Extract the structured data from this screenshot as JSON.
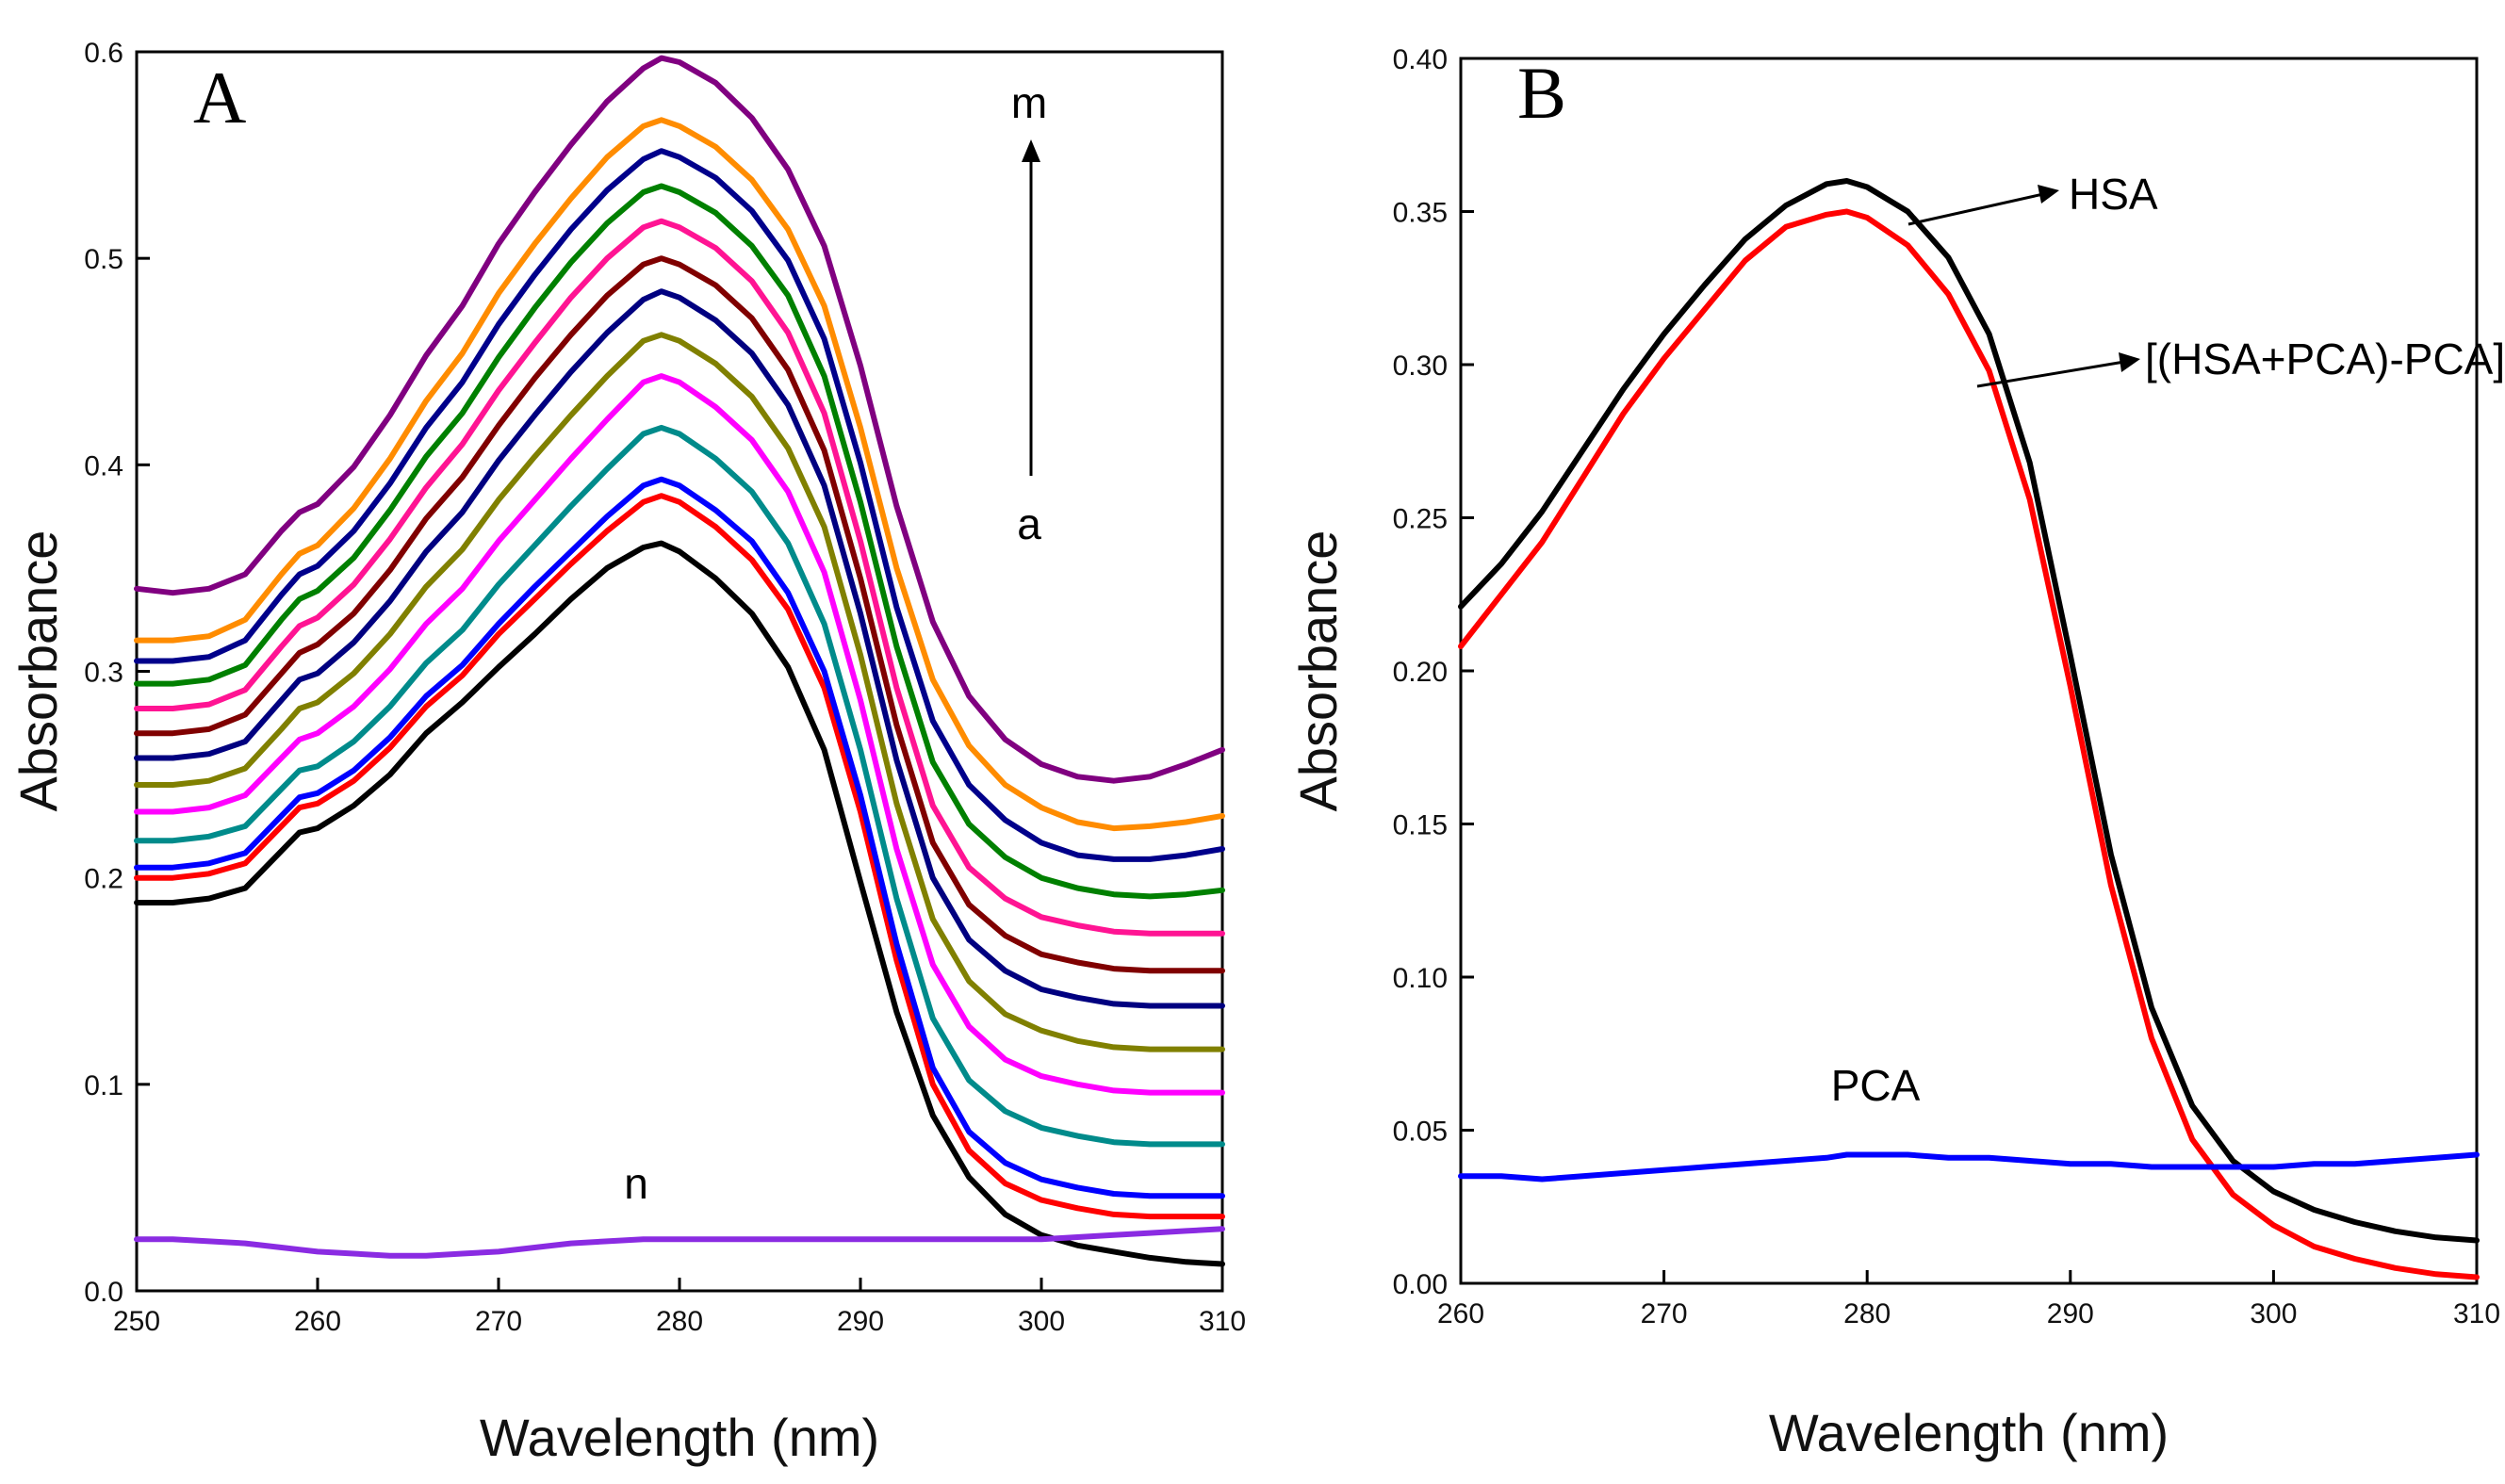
{
  "chart_data": [
    {
      "panel_label": "A",
      "type": "line",
      "xlabel": "Wavelength (nm)",
      "ylabel": "Absorbance",
      "xlim": [
        250,
        310
      ],
      "ylim": [
        0.0,
        0.6
      ],
      "xticks": [
        "250",
        "260",
        "270",
        "280",
        "290",
        "300",
        "310"
      ],
      "yticks": [
        "0.0",
        "0.1",
        "0.2",
        "0.3",
        "0.4",
        "0.5",
        "0.6"
      ],
      "grid": false,
      "legend": "none",
      "annotations": [
        {
          "text": "m"
        },
        {
          "text": "a"
        },
        {
          "text": "n"
        }
      ],
      "x": [
        250,
        252,
        254,
        256,
        258,
        259,
        260,
        262,
        264,
        266,
        268,
        270,
        272,
        274,
        276,
        278,
        279,
        280,
        282,
        284,
        286,
        288,
        290,
        292,
        294,
        296,
        298,
        300,
        302,
        304,
        306,
        308,
        310
      ],
      "series": [
        {
          "color": "#000000",
          "values": [
            0.188,
            0.188,
            0.19,
            0.195,
            0.213,
            0.222,
            0.224,
            0.235,
            0.25,
            0.27,
            0.285,
            0.302,
            0.318,
            0.335,
            0.35,
            0.36,
            0.362,
            0.358,
            0.345,
            0.328,
            0.302,
            0.262,
            0.198,
            0.135,
            0.085,
            0.055,
            0.037,
            0.027,
            0.022,
            0.019,
            0.016,
            0.014,
            0.013
          ]
        },
        {
          "color": "#ff0000",
          "values": [
            0.2,
            0.2,
            0.202,
            0.207,
            0.225,
            0.234,
            0.236,
            0.247,
            0.263,
            0.283,
            0.298,
            0.318,
            0.335,
            0.352,
            0.368,
            0.382,
            0.385,
            0.382,
            0.37,
            0.354,
            0.33,
            0.292,
            0.232,
            0.16,
            0.1,
            0.068,
            0.052,
            0.044,
            0.04,
            0.037,
            0.036,
            0.036,
            0.036
          ]
        },
        {
          "color": "#0000ff",
          "values": [
            0.205,
            0.205,
            0.207,
            0.212,
            0.23,
            0.239,
            0.241,
            0.252,
            0.268,
            0.288,
            0.303,
            0.323,
            0.341,
            0.358,
            0.375,
            0.39,
            0.393,
            0.39,
            0.378,
            0.363,
            0.338,
            0.3,
            0.24,
            0.168,
            0.108,
            0.077,
            0.062,
            0.054,
            0.05,
            0.047,
            0.046,
            0.046,
            0.046
          ]
        },
        {
          "color": "#008b8b",
          "values": [
            0.218,
            0.218,
            0.22,
            0.225,
            0.243,
            0.252,
            0.254,
            0.266,
            0.283,
            0.304,
            0.32,
            0.342,
            0.361,
            0.38,
            0.398,
            0.415,
            0.418,
            0.415,
            0.403,
            0.387,
            0.362,
            0.323,
            0.262,
            0.19,
            0.132,
            0.102,
            0.087,
            0.079,
            0.075,
            0.072,
            0.071,
            0.071,
            0.071
          ]
        },
        {
          "color": "#ff00ff",
          "values": [
            0.232,
            0.232,
            0.234,
            0.24,
            0.258,
            0.267,
            0.27,
            0.283,
            0.301,
            0.323,
            0.34,
            0.363,
            0.383,
            0.403,
            0.422,
            0.44,
            0.443,
            0.44,
            0.428,
            0.412,
            0.387,
            0.348,
            0.286,
            0.214,
            0.158,
            0.128,
            0.112,
            0.104,
            0.1,
            0.097,
            0.096,
            0.096,
            0.096
          ]
        },
        {
          "color": "#808000",
          "values": [
            0.245,
            0.245,
            0.247,
            0.253,
            0.272,
            0.282,
            0.285,
            0.299,
            0.318,
            0.341,
            0.359,
            0.383,
            0.404,
            0.424,
            0.443,
            0.46,
            0.463,
            0.46,
            0.449,
            0.433,
            0.408,
            0.37,
            0.308,
            0.236,
            0.18,
            0.15,
            0.134,
            0.126,
            0.121,
            0.118,
            0.117,
            0.117,
            0.117
          ]
        },
        {
          "color": "#000080",
          "values": [
            0.258,
            0.258,
            0.26,
            0.266,
            0.286,
            0.296,
            0.299,
            0.314,
            0.334,
            0.358,
            0.377,
            0.402,
            0.424,
            0.445,
            0.464,
            0.48,
            0.484,
            0.481,
            0.47,
            0.454,
            0.429,
            0.39,
            0.328,
            0.257,
            0.2,
            0.17,
            0.155,
            0.146,
            0.142,
            0.139,
            0.138,
            0.138,
            0.138
          ]
        },
        {
          "color": "#800000",
          "values": [
            0.27,
            0.27,
            0.272,
            0.279,
            0.299,
            0.309,
            0.313,
            0.328,
            0.349,
            0.374,
            0.394,
            0.419,
            0.442,
            0.463,
            0.482,
            0.497,
            0.5,
            0.497,
            0.487,
            0.471,
            0.446,
            0.407,
            0.345,
            0.274,
            0.217,
            0.187,
            0.172,
            0.163,
            0.159,
            0.156,
            0.155,
            0.155,
            0.155
          ]
        },
        {
          "color": "#ff1493",
          "values": [
            0.282,
            0.282,
            0.284,
            0.291,
            0.312,
            0.322,
            0.326,
            0.342,
            0.364,
            0.389,
            0.41,
            0.436,
            0.459,
            0.481,
            0.5,
            0.515,
            0.518,
            0.515,
            0.505,
            0.489,
            0.464,
            0.425,
            0.363,
            0.292,
            0.235,
            0.205,
            0.19,
            0.181,
            0.177,
            0.174,
            0.173,
            0.173,
            0.173
          ]
        },
        {
          "color": "#008000",
          "values": [
            0.294,
            0.294,
            0.296,
            0.303,
            0.325,
            0.335,
            0.339,
            0.355,
            0.378,
            0.404,
            0.425,
            0.452,
            0.476,
            0.498,
            0.517,
            0.532,
            0.535,
            0.532,
            0.522,
            0.506,
            0.482,
            0.443,
            0.382,
            0.312,
            0.256,
            0.226,
            0.21,
            0.2,
            0.195,
            0.192,
            0.191,
            0.192,
            0.194
          ]
        },
        {
          "color": "#00008b",
          "values": [
            0.305,
            0.305,
            0.307,
            0.315,
            0.337,
            0.347,
            0.351,
            0.368,
            0.391,
            0.418,
            0.44,
            0.468,
            0.492,
            0.514,
            0.533,
            0.548,
            0.552,
            0.549,
            0.539,
            0.523,
            0.499,
            0.461,
            0.401,
            0.331,
            0.276,
            0.245,
            0.228,
            0.217,
            0.211,
            0.209,
            0.209,
            0.211,
            0.214
          ]
        },
        {
          "color": "#ff8c00",
          "values": [
            0.315,
            0.315,
            0.317,
            0.325,
            0.347,
            0.357,
            0.361,
            0.379,
            0.403,
            0.431,
            0.454,
            0.483,
            0.507,
            0.529,
            0.549,
            0.564,
            0.567,
            0.564,
            0.554,
            0.538,
            0.514,
            0.477,
            0.418,
            0.35,
            0.296,
            0.264,
            0.245,
            0.234,
            0.227,
            0.224,
            0.225,
            0.227,
            0.23
          ]
        },
        {
          "color": "#800080",
          "values": [
            0.34,
            0.338,
            0.34,
            0.347,
            0.368,
            0.377,
            0.381,
            0.399,
            0.424,
            0.453,
            0.477,
            0.507,
            0.532,
            0.555,
            0.576,
            0.592,
            0.597,
            0.595,
            0.585,
            0.568,
            0.543,
            0.506,
            0.448,
            0.38,
            0.324,
            0.288,
            0.267,
            0.255,
            0.249,
            0.247,
            0.249,
            0.255,
            0.262
          ]
        },
        {
          "color": "#8a2be2",
          "values": [
            0.025,
            0.025,
            0.024,
            0.023,
            0.021,
            0.02,
            0.019,
            0.018,
            0.017,
            0.017,
            0.018,
            0.019,
            0.021,
            0.023,
            0.024,
            0.025,
            0.025,
            0.025,
            0.025,
            0.025,
            0.025,
            0.025,
            0.025,
            0.025,
            0.025,
            0.025,
            0.025,
            0.025,
            0.026,
            0.027,
            0.028,
            0.029,
            0.03
          ]
        }
      ]
    },
    {
      "panel_label": "B",
      "type": "line",
      "xlabel": "Wavelength (nm)",
      "ylabel": "Absorbance",
      "xlim": [
        260,
        310
      ],
      "ylim": [
        0.0,
        0.4
      ],
      "xticks": [
        "260",
        "270",
        "280",
        "290",
        "300",
        "310"
      ],
      "yticks": [
        "0.00",
        "0.05",
        "0.10",
        "0.15",
        "0.20",
        "0.25",
        "0.30",
        "0.35",
        "0.40"
      ],
      "grid": false,
      "legend": "none",
      "annotations": [
        {
          "text": "HSA"
        },
        {
          "text": "[(HSA+PCA)-PCA]"
        },
        {
          "text": "PCA"
        }
      ],
      "x": [
        260,
        262,
        264,
        266,
        268,
        270,
        272,
        274,
        276,
        278,
        279,
        280,
        282,
        284,
        286,
        288,
        290,
        292,
        294,
        296,
        298,
        300,
        302,
        304,
        306,
        308,
        310
      ],
      "series": [
        {
          "name": "HSA",
          "color": "#000000",
          "values": [
            0.221,
            0.235,
            0.252,
            0.272,
            0.292,
            0.31,
            0.326,
            0.341,
            0.352,
            0.359,
            0.36,
            0.358,
            0.35,
            0.335,
            0.31,
            0.268,
            0.205,
            0.14,
            0.09,
            0.058,
            0.04,
            0.03,
            0.024,
            0.02,
            0.017,
            0.015,
            0.014
          ]
        },
        {
          "name": "[(HSA+PCA)-PCA]",
          "color": "#ff0000",
          "values": [
            0.208,
            0.225,
            0.242,
            0.263,
            0.284,
            0.302,
            0.318,
            0.334,
            0.345,
            0.349,
            0.35,
            0.348,
            0.339,
            0.323,
            0.298,
            0.256,
            0.195,
            0.13,
            0.08,
            0.047,
            0.029,
            0.019,
            0.012,
            0.008,
            0.005,
            0.003,
            0.002
          ]
        },
        {
          "name": "PCA",
          "color": "#0000ff",
          "values": [
            0.035,
            0.035,
            0.034,
            0.035,
            0.036,
            0.037,
            0.038,
            0.039,
            0.04,
            0.041,
            0.042,
            0.042,
            0.042,
            0.041,
            0.041,
            0.04,
            0.039,
            0.039,
            0.038,
            0.038,
            0.038,
            0.038,
            0.039,
            0.039,
            0.04,
            0.041,
            0.042
          ]
        }
      ]
    }
  ]
}
